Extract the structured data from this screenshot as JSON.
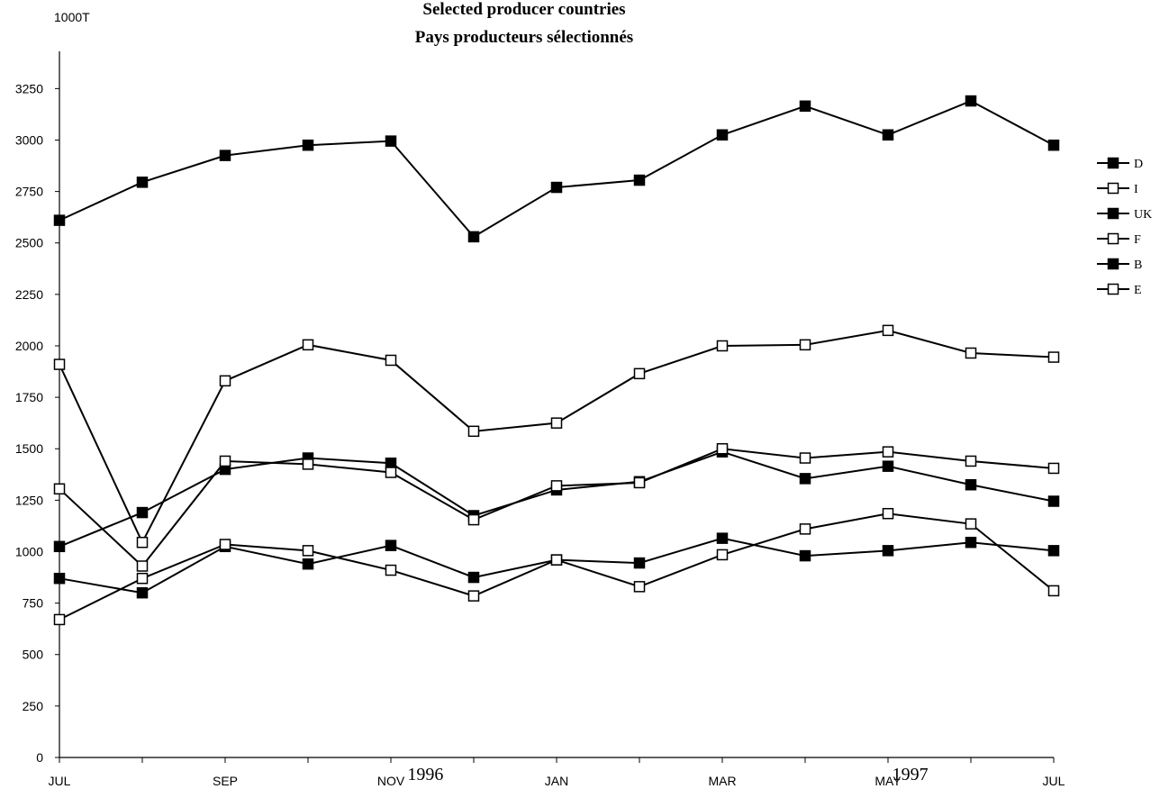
{
  "chart_data": {
    "type": "line",
    "title": "Selected producer countries",
    "subtitle": "Pays producteurs sélectionnés",
    "ylabel": "1000T",
    "ylim": [
      0,
      3250
    ],
    "yticks": [
      0,
      250,
      500,
      750,
      1000,
      1250,
      1500,
      1750,
      2000,
      2250,
      2500,
      2750,
      3000,
      3250
    ],
    "categories": [
      "JUL",
      "",
      "SEP",
      "",
      "NOV",
      "",
      "JAN",
      "",
      "MAR",
      "",
      "MAY",
      "",
      "JUL"
    ],
    "year_labels": [
      {
        "text": "1996",
        "after_index": 4.2
      },
      {
        "text": "1997",
        "after_index": 10.05
      }
    ],
    "legend_position": "right",
    "series": [
      {
        "name": "D",
        "marker": "filled",
        "values": [
          2610,
          2795,
          2925,
          2975,
          2995,
          2530,
          2770,
          2805,
          3025,
          3165,
          3025,
          3190,
          2975
        ]
      },
      {
        "name": "I",
        "marker": "hollow",
        "values": [
          1910,
          1045,
          1830,
          2005,
          1930,
          1585,
          1625,
          1865,
          2000,
          2005,
          2075,
          1965,
          1945
        ]
      },
      {
        "name": "UK",
        "marker": "filled",
        "values": [
          1025,
          1190,
          1400,
          1455,
          1430,
          1175,
          1300,
          1340,
          1485,
          1355,
          1415,
          1325,
          1245
        ]
      },
      {
        "name": "F",
        "marker": "hollow",
        "values": [
          1305,
          930,
          1440,
          1425,
          1385,
          1155,
          1320,
          1335,
          1500,
          1455,
          1485,
          1440,
          1405
        ]
      },
      {
        "name": "B",
        "marker": "filled",
        "values": [
          870,
          800,
          1025,
          940,
          1030,
          875,
          960,
          945,
          1065,
          980,
          1005,
          1045,
          1005
        ]
      },
      {
        "name": "E",
        "marker": "hollow",
        "values": [
          670,
          870,
          1035,
          1005,
          910,
          785,
          960,
          830,
          985,
          1110,
          1185,
          1135,
          810
        ]
      }
    ]
  }
}
